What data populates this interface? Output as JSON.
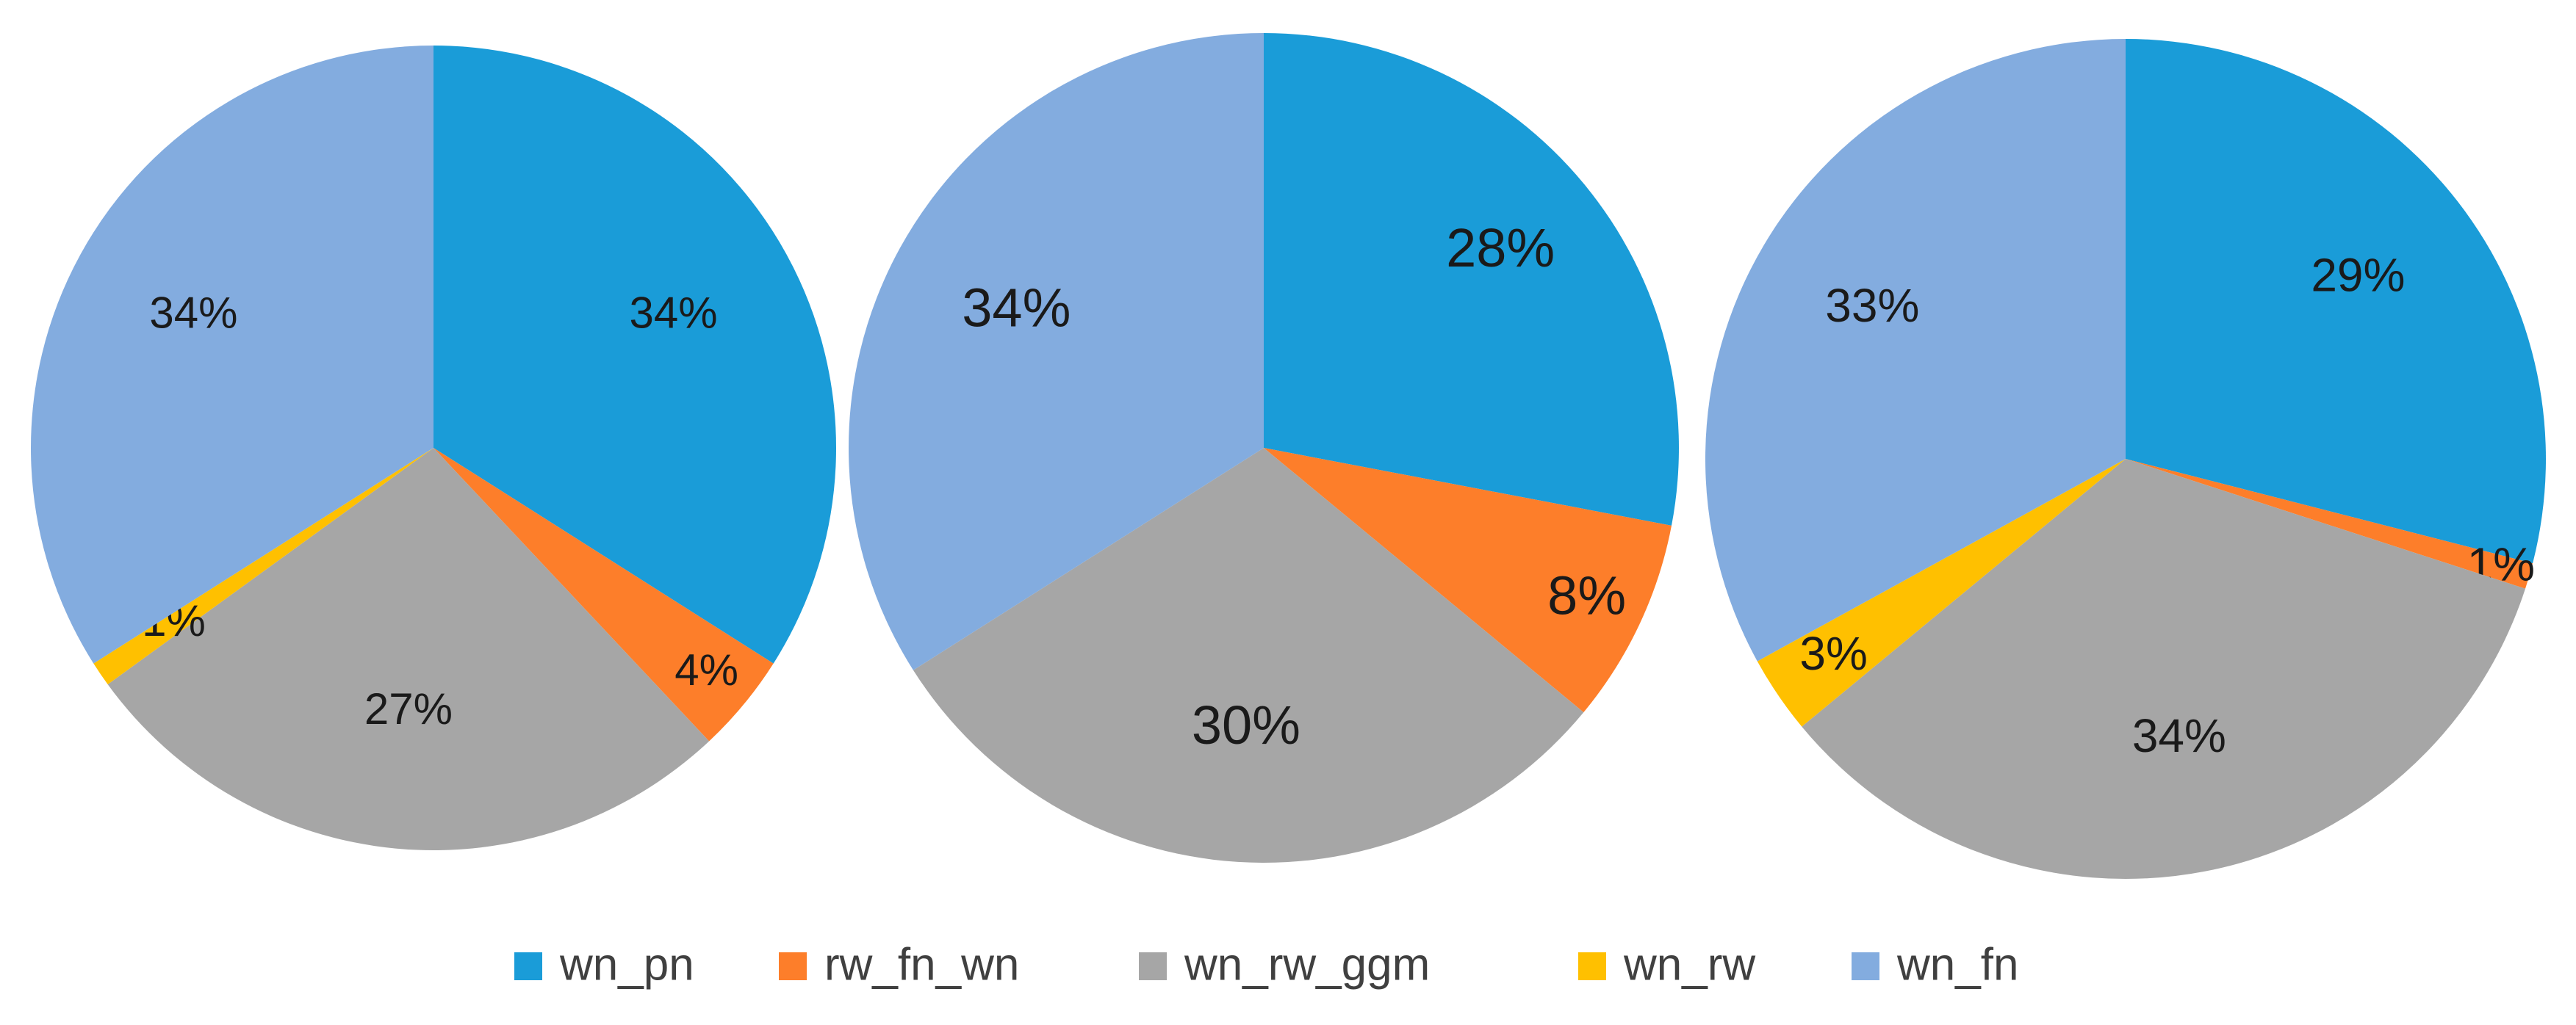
{
  "chart_data": [
    {
      "type": "pie",
      "categories": [
        "wn_pn",
        "rw_fn_wn",
        "wn_rw_ggm",
        "wn_rw",
        "wn_fn"
      ],
      "values": [
        34,
        4,
        27,
        1,
        34
      ],
      "labels": [
        "34%",
        "4%",
        "27%",
        "1%",
        "34%"
      ]
    },
    {
      "type": "pie",
      "categories": [
        "wn_pn",
        "rw_fn_wn",
        "wn_rw_ggm",
        "wn_rw",
        "wn_fn"
      ],
      "values": [
        28,
        8,
        30,
        0,
        34
      ],
      "labels": [
        "28%",
        "8%",
        "30%",
        "",
        "34%"
      ]
    },
    {
      "type": "pie",
      "categories": [
        "wn_pn",
        "rw_fn_wn",
        "wn_rw_ggm",
        "wn_rw",
        "wn_fn"
      ],
      "values": [
        29,
        1,
        34,
        3,
        33
      ],
      "labels": [
        "29%",
        "1%",
        "34%",
        "3%",
        "33%"
      ]
    }
  ],
  "legend": {
    "placement": "bottom",
    "items": [
      {
        "name": "wn_pn",
        "color": "#1a9cd8"
      },
      {
        "name": "rw_fn_wn",
        "color": "#fd7e2a"
      },
      {
        "name": "wn_rw_ggm",
        "color": "#a6a6a6"
      },
      {
        "name": "wn_rw",
        "color": "#ffc000"
      },
      {
        "name": "wn_fn",
        "color": "#83acdf"
      }
    ]
  }
}
